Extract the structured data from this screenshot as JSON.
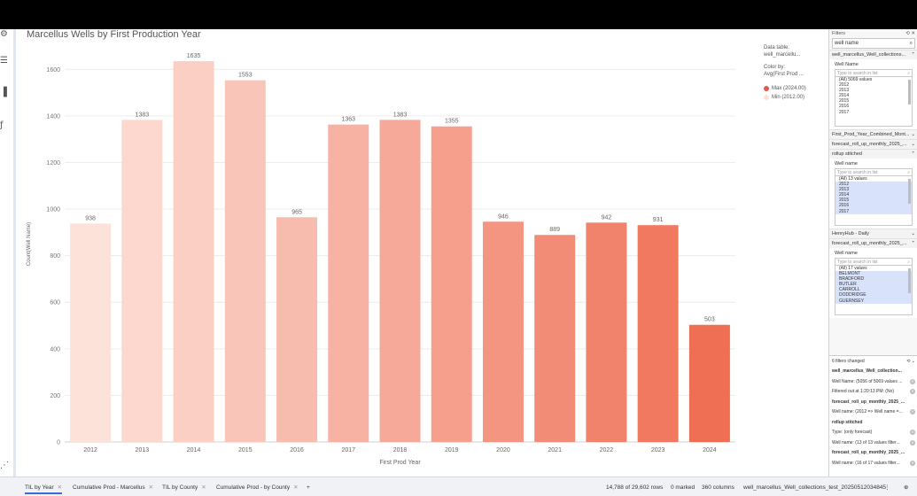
{
  "chart_data": {
    "type": "bar",
    "title": "Marcellus Wells by First Production Year",
    "xlabel": "First Prod Year",
    "ylabel": "Count(Well Name)",
    "categories": [
      "2012",
      "2013",
      "2014",
      "2015",
      "2016",
      "2017",
      "2018",
      "2019",
      "2020",
      "2021",
      "2022",
      "2023",
      "2024"
    ],
    "values": [
      938,
      1383,
      1635,
      1553,
      965,
      1363,
      1383,
      1355,
      946,
      889,
      942,
      931,
      503
    ],
    "ylim": [
      0,
      1700
    ],
    "yticks": [
      0,
      200,
      400,
      600,
      800,
      1000,
      1200,
      1400,
      1600
    ],
    "grid": true,
    "legend_placement": "top-right",
    "color_min": "#fde2da",
    "color_max": "#ef6f55"
  },
  "legend": {
    "data_table_label": "Data table:",
    "data_table_value": "well_marcellu...",
    "color_by_label": "Color by:",
    "color_by_value": "Avg(First Prod ...",
    "max_label": "Max (2024.00)",
    "min_label": "Min (2012.00)",
    "max_color": "#e05a4a",
    "min_color": "#fde2da"
  },
  "filters": {
    "header": "Filters",
    "search_value": "well name",
    "section1": "well_marcellus_Well_collections...",
    "group1": {
      "label": "Well Name",
      "search_placeholder": "Type to search in list",
      "items": [
        "(All) 5069 values",
        "2012",
        "2013",
        "2014",
        "2015",
        "2016",
        "2017"
      ]
    },
    "section2": "First_Prod_Year_Combined_Mont...",
    "section3": "forecast_roll_up_monthly_2025_...",
    "section4": "rollup stitched",
    "group2": {
      "label": "Well name",
      "search_placeholder": "Type to search in list",
      "items": [
        "(All) 13 values",
        "2012",
        "2013",
        "2014",
        "2015",
        "2016",
        "2017"
      ]
    },
    "section5": "HenryHub - Daily",
    "section6": "forecast_roll_up_monthly_2025_...",
    "group3": {
      "label": "Well name",
      "search_placeholder": "Type to search in list",
      "items": [
        "(All) 17 values",
        "BELMONT",
        "BRADFORD",
        "BUTLER",
        "CARROLL",
        "DODDRIDGE",
        "GUERNSEY"
      ]
    },
    "changed_header": "6 filters changed",
    "changed_rows": [
      {
        "text": "well_marcellus_Well_collection...",
        "bold": true
      },
      {
        "text": "Well Name: (5056 of 5069 values ..."
      },
      {
        "text": "Filtered out at 1:20:13 PM: (No)"
      },
      {
        "text": "forecast_roll_up_monthly_2025_...",
        "bold": true
      },
      {
        "text": "Well name: (2012 => Well name =..."
      },
      {
        "text": "rollup stitched",
        "bold": true
      },
      {
        "text": "Type: (only forecast)"
      },
      {
        "text": "Well name: (13 of 13 values filter..."
      },
      {
        "text": "forecast_roll_up_monthly_2025_...",
        "bold": true
      },
      {
        "text": "Well name: (16 of 17 values filter..."
      }
    ]
  },
  "tabs": [
    {
      "label": "TIL by Year"
    },
    {
      "label": "Cumulative Prod - Marcellus"
    },
    {
      "label": "TIL by County"
    },
    {
      "label": "Cumulative Prod - by County"
    }
  ],
  "add_tab": "+",
  "status": {
    "rows": "14,788 of 29,602 rows",
    "marked": "0 marked",
    "columns": "360 columns",
    "table": "well_marcellus_Well_collections_test_20250512034845"
  }
}
